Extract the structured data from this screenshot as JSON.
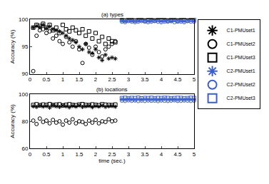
{
  "chart_data": [
    {
      "type": "scatter",
      "title": "(a) types",
      "y_label": "Accuracy (%)",
      "xlim": [
        0,
        5
      ],
      "xticks": [
        0,
        0.5,
        1,
        1.5,
        2,
        2.5,
        3,
        3.5,
        4,
        4.5,
        5
      ],
      "ylim": [
        90,
        100
      ],
      "yticks": [
        90,
        95,
        100
      ],
      "grid": false,
      "legend": "right",
      "series": [
        {
          "name": "C1-PMUset1",
          "color": "#000000",
          "marker": "asterisk",
          "x": [
            0.1,
            0.2,
            0.3,
            0.4,
            0.5,
            0.6,
            0.7,
            0.8,
            0.9,
            1.0,
            1.1,
            1.2,
            1.3,
            1.4,
            1.5,
            1.6,
            1.7,
            1.8,
            1.9,
            2.0,
            2.1,
            2.2,
            2.3,
            2.4,
            2.5,
            2.6
          ],
          "values": [
            98.5,
            98.8,
            98.6,
            99.0,
            98.4,
            98.7,
            98.2,
            98.0,
            97.8,
            97.5,
            97.0,
            96.5,
            96.2,
            95.8,
            95.0,
            94.5,
            95.5,
            94.0,
            93.8,
            94.5,
            93.0,
            92.5,
            93.5,
            92.8,
            93.0,
            92.8
          ]
        },
        {
          "name": "C1-PMUset2",
          "color": "#000000",
          "marker": "circle",
          "x": [
            0.1,
            0.2,
            0.3,
            0.4,
            0.5,
            0.6,
            0.7,
            0.8,
            0.9,
            1.0,
            1.1,
            1.2,
            1.3,
            1.4,
            1.5,
            1.6,
            1.7,
            1.8,
            1.9,
            2.0,
            2.1,
            2.2,
            2.3,
            2.4,
            2.5,
            2.6
          ],
          "values": [
            90.5,
            97.0,
            98.0,
            98.2,
            97.5,
            97.8,
            96.5,
            97.0,
            96.0,
            95.5,
            96.8,
            95.8,
            95.0,
            96.0,
            94.5,
            92.0,
            95.5,
            94.8,
            93.5,
            95.0,
            94.0,
            93.2,
            94.5,
            95.0,
            95.5,
            96.0
          ]
        },
        {
          "name": "C1-PMUset3",
          "color": "#000000",
          "marker": "square",
          "x": [
            0.1,
            0.2,
            0.3,
            0.4,
            0.5,
            0.6,
            0.7,
            0.8,
            0.9,
            1.0,
            1.1,
            1.2,
            1.3,
            1.4,
            1.5,
            1.6,
            1.7,
            1.8,
            1.9,
            2.0,
            2.1,
            2.2,
            2.3,
            2.4,
            2.5,
            2.6
          ],
          "values": [
            98.5,
            99.0,
            98.8,
            99.2,
            98.5,
            99.0,
            98.0,
            98.5,
            97.5,
            99.0,
            98.2,
            97.8,
            98.5,
            98.0,
            97.5,
            98.2,
            97.0,
            97.8,
            96.5,
            97.5,
            96.0,
            96.8,
            95.5,
            96.5,
            96.0,
            95.8
          ]
        },
        {
          "name": "C2-PMUset1",
          "color": "#3a5fcd",
          "marker": "asterisk",
          "x": [
            2.8,
            2.9,
            3.0,
            3.1,
            3.2,
            3.3,
            3.4,
            3.5,
            3.6,
            3.7,
            3.8,
            3.9,
            4.0,
            4.1,
            4.2,
            4.3,
            4.4,
            4.5,
            4.6,
            4.7,
            4.8,
            4.9,
            5.0
          ],
          "values": [
            99.8,
            99.7,
            99.9,
            99.8,
            99.7,
            99.8,
            99.9,
            99.8,
            99.7,
            99.8,
            99.8,
            99.9,
            99.7,
            99.8,
            99.8,
            99.7,
            99.9,
            99.8,
            99.8,
            99.7,
            99.8,
            99.9,
            99.8
          ]
        },
        {
          "name": "C2-PMUset2",
          "color": "#3a5fcd",
          "marker": "circle",
          "x": [
            2.8,
            2.9,
            3.0,
            3.1,
            3.2,
            3.3,
            3.4,
            3.5,
            3.6,
            3.7,
            3.8,
            3.9,
            4.0,
            4.1,
            4.2,
            4.3,
            4.4,
            4.5,
            4.6,
            4.7,
            4.8,
            4.9,
            5.0
          ],
          "values": [
            99.6,
            99.5,
            99.7,
            99.6,
            99.5,
            99.6,
            99.7,
            99.6,
            99.5,
            99.6,
            99.7,
            99.6,
            99.5,
            99.6,
            99.6,
            99.7,
            99.5,
            99.6,
            99.6,
            99.5,
            99.7,
            99.6,
            99.6
          ]
        },
        {
          "name": "C2-PMUset3",
          "color": "#3a5fcd",
          "marker": "square",
          "x": [
            2.8,
            2.9,
            3.0,
            3.1,
            3.2,
            3.3,
            3.4,
            3.5,
            3.6,
            3.7,
            3.8,
            3.9,
            4.0,
            4.1,
            4.2,
            4.3,
            4.4,
            4.5,
            4.6,
            4.7,
            4.8,
            4.9,
            5.0
          ],
          "values": [
            99.9,
            99.8,
            99.9,
            99.9,
            99.8,
            99.9,
            99.9,
            99.8,
            99.9,
            99.9,
            99.8,
            99.9,
            99.9,
            99.9,
            99.8,
            99.9,
            99.9,
            99.8,
            99.9,
            99.9,
            99.8,
            99.9,
            99.9
          ]
        }
      ]
    },
    {
      "type": "scatter",
      "title": "(b) locations",
      "x_label": "time (sec.)",
      "y_label": "Accuracy (%)",
      "xlim": [
        0,
        5
      ],
      "xticks": [
        0,
        0.5,
        1,
        1.5,
        2,
        2.5,
        3,
        3.5,
        4,
        4.5,
        5
      ],
      "ylim": [
        60,
        100
      ],
      "yticks": [
        60,
        80,
        100
      ],
      "grid": false,
      "series": [
        {
          "name": "C1-PMUset1",
          "color": "#000000",
          "marker": "asterisk",
          "x": [
            0.1,
            0.2,
            0.3,
            0.4,
            0.5,
            0.6,
            0.7,
            0.8,
            0.9,
            1.0,
            1.1,
            1.2,
            1.3,
            1.4,
            1.5,
            1.6,
            1.7,
            1.8,
            1.9,
            2.0,
            2.1,
            2.2,
            2.3,
            2.4,
            2.5,
            2.6
          ],
          "values": [
            91.0,
            90.5,
            91.5,
            90.8,
            91.2,
            90.0,
            91.8,
            91.0,
            90.5,
            91.5,
            91.0,
            90.2,
            91.3,
            90.8,
            91.6,
            90.5,
            91.0,
            91.4,
            90.3,
            91.2,
            90.8,
            91.5,
            90.6,
            91.0,
            91.3,
            90.7
          ]
        },
        {
          "name": "C1-PMUset2",
          "color": "#000000",
          "marker": "circle",
          "x": [
            0.1,
            0.2,
            0.3,
            0.4,
            0.5,
            0.6,
            0.7,
            0.8,
            0.9,
            1.0,
            1.1,
            1.2,
            1.3,
            1.4,
            1.5,
            1.6,
            1.7,
            1.8,
            1.9,
            2.0,
            2.1,
            2.2,
            2.3,
            2.4,
            2.5,
            2.6
          ],
          "values": [
            80.5,
            78.0,
            82.0,
            79.5,
            80.5,
            78.5,
            81.0,
            79.0,
            80.0,
            77.5,
            80.5,
            79.0,
            81.5,
            78.5,
            80.0,
            79.5,
            78.0,
            80.5,
            79.0,
            81.0,
            78.5,
            80.0,
            79.5,
            81.5,
            80.0,
            80.5
          ]
        },
        {
          "name": "C1-PMUset3",
          "color": "#000000",
          "marker": "square",
          "x": [
            0.1,
            0.2,
            0.3,
            0.4,
            0.5,
            0.6,
            0.7,
            0.8,
            0.9,
            1.0,
            1.1,
            1.2,
            1.3,
            1.4,
            1.5,
            1.6,
            1.7,
            1.8,
            1.9,
            2.0,
            2.1,
            2.2,
            2.3,
            2.4,
            2.5,
            2.6
          ],
          "values": [
            92.0,
            92.5,
            91.8,
            92.3,
            92.0,
            92.6,
            91.9,
            92.2,
            92.4,
            91.7,
            92.1,
            92.5,
            92.0,
            91.8,
            92.3,
            92.6,
            92.0,
            91.9,
            92.4,
            92.1,
            91.8,
            92.5,
            92.2,
            92.0,
            91.9,
            92.3
          ]
        },
        {
          "name": "C2-PMUset1",
          "color": "#3a5fcd",
          "marker": "asterisk",
          "x": [
            2.8,
            2.9,
            3.0,
            3.1,
            3.2,
            3.3,
            3.4,
            3.5,
            3.6,
            3.7,
            3.8,
            3.9,
            4.0,
            4.1,
            4.2,
            4.3,
            4.4,
            4.5,
            4.6,
            4.7,
            4.8,
            4.9,
            5.0
          ],
          "values": [
            96.2,
            96.0,
            96.3,
            96.1,
            95.9,
            96.2,
            96.0,
            96.3,
            96.1,
            96.0,
            96.2,
            95.9,
            96.1,
            96.3,
            96.0,
            96.2,
            96.1,
            95.9,
            96.2,
            96.0,
            96.3,
            96.1,
            96.0
          ]
        },
        {
          "name": "C2-PMUset2",
          "color": "#3a5fcd",
          "marker": "circle",
          "x": [
            2.8,
            2.9,
            3.0,
            3.1,
            3.2,
            3.3,
            3.4,
            3.5,
            3.6,
            3.7,
            3.8,
            3.9,
            4.0,
            4.1,
            4.2,
            4.3,
            4.4,
            4.5,
            4.6,
            4.7,
            4.8,
            4.9,
            5.0
          ],
          "values": [
            95.2,
            95.0,
            95.4,
            95.1,
            95.3,
            94.9,
            95.2,
            95.0,
            95.3,
            95.1,
            95.2,
            94.9,
            95.3,
            95.1,
            95.0,
            95.2,
            95.4,
            95.0,
            95.1,
            95.3,
            95.2,
            95.0,
            95.2
          ]
        },
        {
          "name": "C2-PMUset3",
          "color": "#3a5fcd",
          "marker": "square",
          "x": [
            2.8,
            2.9,
            3.0,
            3.1,
            3.2,
            3.3,
            3.4,
            3.5,
            3.6,
            3.7,
            3.8,
            3.9,
            4.0,
            4.1,
            4.2,
            4.3,
            4.4,
            4.5,
            4.6,
            4.7,
            4.8,
            4.9,
            5.0
          ],
          "values": [
            97.0,
            97.2,
            96.9,
            97.1,
            97.0,
            97.3,
            96.8,
            97.1,
            97.0,
            97.2,
            96.9,
            97.1,
            97.0,
            97.2,
            97.1,
            96.9,
            97.0,
            97.2,
            97.1,
            96.9,
            97.0,
            97.2,
            97.1
          ]
        }
      ]
    }
  ]
}
